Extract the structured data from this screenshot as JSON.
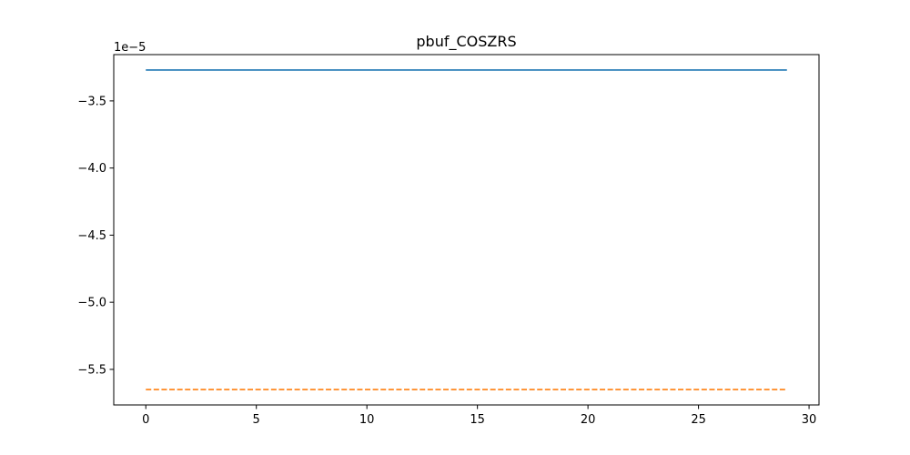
{
  "chart_data": {
    "type": "line",
    "title": "pbuf_COSZRS",
    "xlabel": "",
    "ylabel": "",
    "y_offset_label": "1e−5",
    "xlim": [
      -1.45,
      30.45
    ],
    "ylim": [
      -5.765,
      -3.155
    ],
    "y_scale_factor": 1e-05,
    "xticks": [
      0,
      5,
      10,
      15,
      20,
      25,
      30
    ],
    "xtick_labels": [
      "0",
      "5",
      "10",
      "15",
      "20",
      "25",
      "30"
    ],
    "yticks": [
      -3.5,
      -4.0,
      -4.5,
      -5.0,
      -5.5
    ],
    "ytick_labels": [
      "−3.5",
      "−4.0",
      "−4.5",
      "−5.0",
      "−5.5"
    ],
    "grid": false,
    "series": [
      {
        "color": "#1f77b4",
        "linestyle": "solid",
        "x": [
          0,
          29
        ],
        "y": [
          -3.27,
          -3.27
        ]
      },
      {
        "color": "#ff7f0e",
        "linestyle": "dashed",
        "x": [
          0,
          29
        ],
        "y": [
          -5.65,
          -5.65
        ]
      }
    ]
  }
}
